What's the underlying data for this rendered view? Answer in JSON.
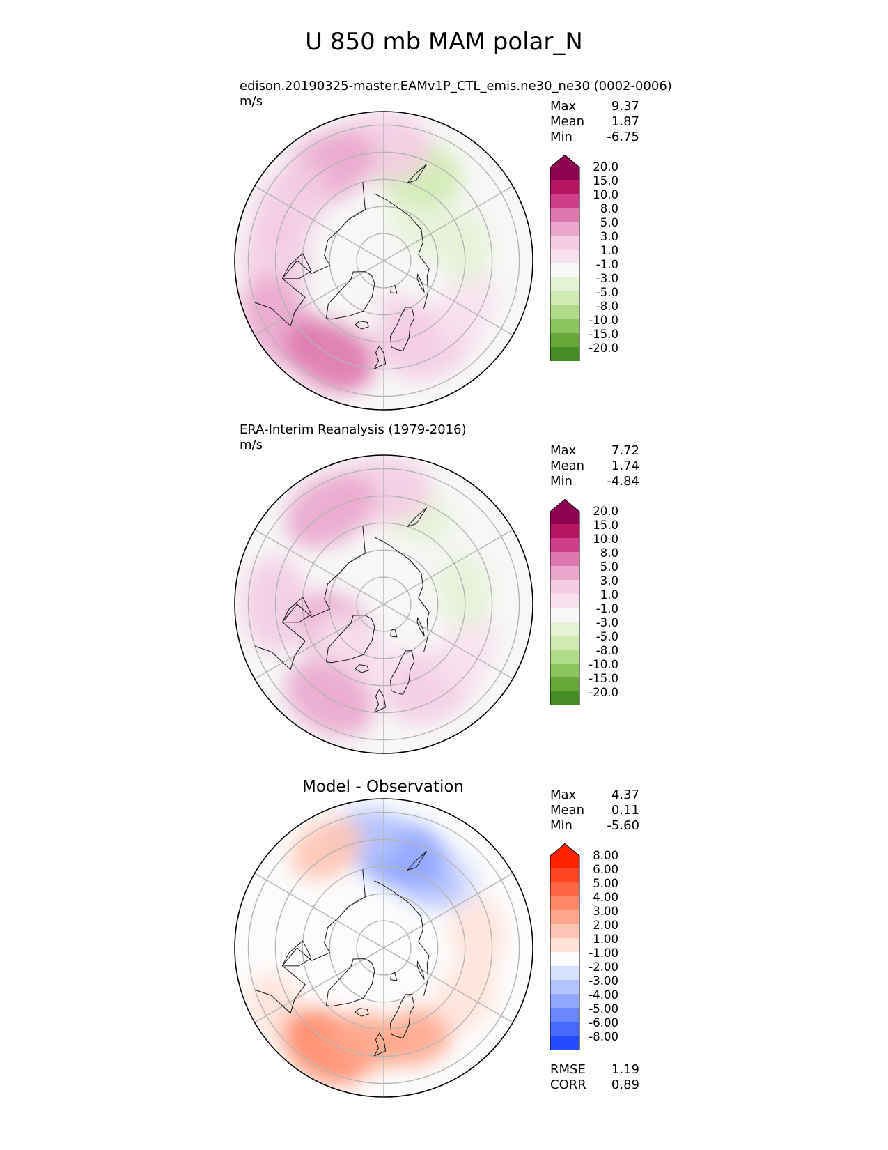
{
  "figure": {
    "title": "U 850 mb MAM polar_N"
  },
  "chart_data": [
    {
      "type": "heatmap",
      "projection": "north-polar-stereographic",
      "title": "edison.20190325-master.EAMv1P_CTL_emis.ne30_ne30 (0002-0006)",
      "units": "m/s",
      "stats": {
        "max": "9.37",
        "mean": "1.87",
        "min": "-6.75"
      },
      "colorbar": {
        "extend": "both",
        "levels": [
          "20.0",
          "15.0",
          "10.0",
          "8.0",
          "5.0",
          "3.0",
          "1.0",
          "-1.0",
          "-3.0",
          "-5.0",
          "-8.0",
          "-10.0",
          "-15.0",
          "-20.0"
        ],
        "colors": [
          "#8e0152",
          "#b5145e",
          "#cf3e8a",
          "#de77ae",
          "#eaa6cd",
          "#f4cce4",
          "#f8e1ef",
          "#f7f7f7",
          "#e6f2d6",
          "#d0ebb2",
          "#b0db89",
          "#8cc55e",
          "#66a737",
          "#468c24",
          "#276419"
        ]
      },
      "regions": [
        {
          "lon": 0,
          "lat": 65,
          "value": 4
        },
        {
          "lon": 30,
          "lat": 55,
          "value": 4
        },
        {
          "lon": 60,
          "lat": 55,
          "value": 1
        },
        {
          "lon": 100,
          "lat": 60,
          "value": -2
        },
        {
          "lon": 135,
          "lat": 70,
          "value": -2
        },
        {
          "lon": 160,
          "lat": 55,
          "value": -4
        },
        {
          "lon": 180,
          "lat": 48,
          "value": 4
        },
        {
          "lon": -150,
          "lat": 50,
          "value": 6
        },
        {
          "lon": -120,
          "lat": 50,
          "value": 4
        },
        {
          "lon": -90,
          "lat": 50,
          "value": 4
        },
        {
          "lon": -60,
          "lat": 45,
          "value": 6
        },
        {
          "lon": -40,
          "lat": 70,
          "value": -1
        },
        {
          "lon": -30,
          "lat": 50,
          "value": 9
        }
      ]
    },
    {
      "type": "heatmap",
      "projection": "north-polar-stereographic",
      "title": "ERA-Interim Reanalysis (1979-2016)",
      "units": "m/s",
      "stats": {
        "max": "7.72",
        "mean": "1.74",
        "min": "-4.84"
      },
      "colorbar": {
        "extend": "both",
        "levels": [
          "20.0",
          "15.0",
          "10.0",
          "8.0",
          "5.0",
          "3.0",
          "1.0",
          "-1.0",
          "-3.0",
          "-5.0",
          "-8.0",
          "-10.0",
          "-15.0",
          "-20.0"
        ],
        "colors": [
          "#8e0152",
          "#b5145e",
          "#cf3e8a",
          "#de77ae",
          "#eaa6cd",
          "#f4cce4",
          "#f8e1ef",
          "#f7f7f7",
          "#e6f2d6",
          "#d0ebb2",
          "#b0db89",
          "#8cc55e",
          "#66a737",
          "#468c24",
          "#276419"
        ]
      },
      "regions": [
        {
          "lon": 0,
          "lat": 65,
          "value": 2
        },
        {
          "lon": 30,
          "lat": 55,
          "value": 4
        },
        {
          "lon": 60,
          "lat": 55,
          "value": 2
        },
        {
          "lon": 100,
          "lat": 60,
          "value": -2
        },
        {
          "lon": 160,
          "lat": 55,
          "value": -2
        },
        {
          "lon": 180,
          "lat": 48,
          "value": 4
        },
        {
          "lon": -150,
          "lat": 50,
          "value": 6
        },
        {
          "lon": -90,
          "lat": 50,
          "value": 4
        },
        {
          "lon": -55,
          "lat": 70,
          "value": 6
        },
        {
          "lon": -40,
          "lat": 70,
          "value": 2
        },
        {
          "lon": -30,
          "lat": 50,
          "value": 7
        }
      ]
    },
    {
      "type": "heatmap",
      "projection": "north-polar-stereographic",
      "title": "Model - Observation",
      "stats": {
        "max": "4.37",
        "mean": "0.11",
        "min": "-5.60"
      },
      "metrics": {
        "rmse": "1.19",
        "corr": "0.89"
      },
      "colorbar": {
        "extend": "both",
        "levels": [
          "8.00",
          "6.00",
          "5.00",
          "4.00",
          "3.00",
          "2.00",
          "1.00",
          "-1.00",
          "-2.00",
          "-3.00",
          "-4.00",
          "-5.00",
          "-6.00",
          "-8.00"
        ],
        "colors": [
          "#ff2200",
          "#ff4422",
          "#ff6644",
          "#ff8866",
          "#ffa68c",
          "#ffc4b2",
          "#ffe2d8",
          "#fcfcfc",
          "#d8e0ff",
          "#b4c3ff",
          "#90a6ff",
          "#6c88ff",
          "#4869ff",
          "#244bff",
          "#002bff"
        ]
      },
      "regions": [
        {
          "lon": 20,
          "lat": 55,
          "value": 3
        },
        {
          "lon": 60,
          "lat": 55,
          "value": 1.5
        },
        {
          "lon": 100,
          "lat": 55,
          "value": 1.5
        },
        {
          "lon": 140,
          "lat": 55,
          "value": -1.5
        },
        {
          "lon": 150,
          "lat": 60,
          "value": -2.5
        },
        {
          "lon": 170,
          "lat": 55,
          "value": -3.5
        },
        {
          "lon": -170,
          "lat": 48,
          "value": -2.5
        },
        {
          "lon": -150,
          "lat": 48,
          "value": 2.5
        },
        {
          "lon": -60,
          "lat": 45,
          "value": 1.5
        },
        {
          "lon": -30,
          "lat": 48,
          "value": 4
        },
        {
          "lon": -10,
          "lat": 55,
          "value": 3
        }
      ]
    }
  ],
  "stat_labels": {
    "max": "Max",
    "mean": "Mean",
    "min": "Min",
    "rmse": "RMSE",
    "corr": "CORR"
  }
}
